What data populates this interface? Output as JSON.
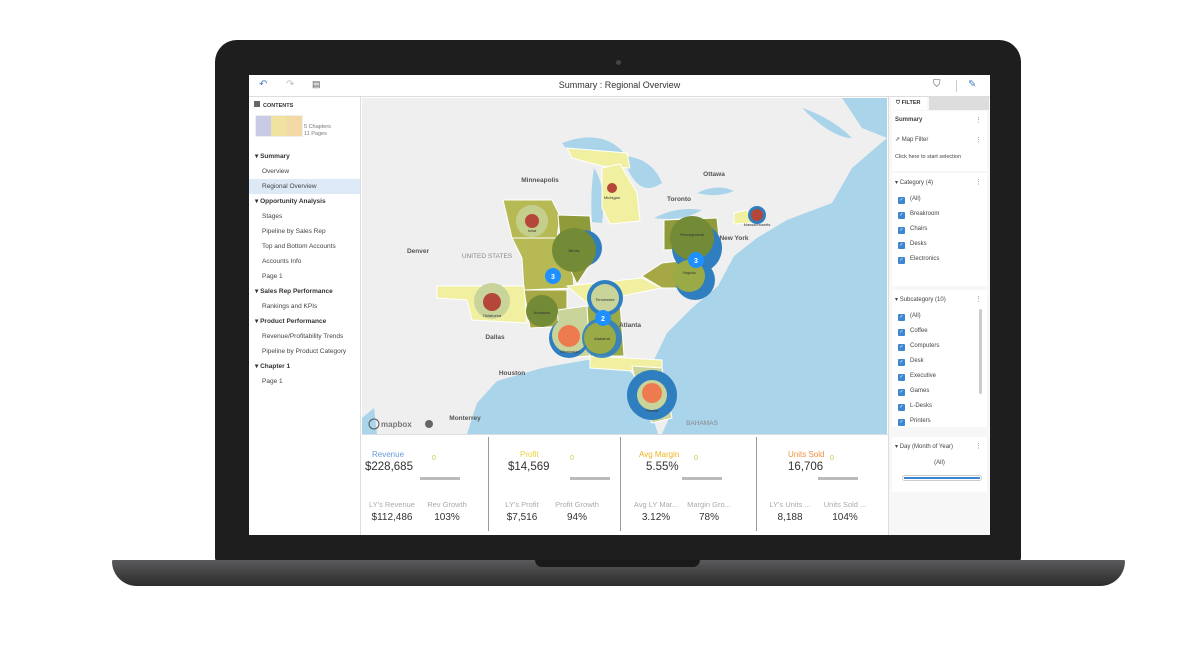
{
  "window": {
    "title": "Summary : Regional Overview"
  },
  "toolbar": {
    "undo": "undo-icon",
    "redo": "redo-icon",
    "contents": "contents-icon",
    "filter": "filter-icon",
    "edit": "pen-icon"
  },
  "sidebar": {
    "header": "CONTENTS",
    "chapters": "5 Chapters",
    "pages": "11 Pages",
    "sections": [
      {
        "label": "Summary",
        "items": [
          "Overview",
          "Regional Overview"
        ]
      },
      {
        "label": "Opportunity Analysis",
        "items": [
          "Stages",
          "Pipeline by Sales Rep",
          "Top and Bottom Accounts",
          "Accounts Info",
          "Page 1"
        ]
      },
      {
        "label": "Sales Rep Performance",
        "items": [
          "Rankings and KPIs"
        ]
      },
      {
        "label": "Product Performance",
        "items": [
          "Revenue/Profitability Trends",
          "Pipeline by Product Category"
        ]
      },
      {
        "label": "Chapter 1",
        "items": [
          "Page 1"
        ]
      }
    ],
    "selected": "Regional Overview"
  },
  "map": {
    "cities": [
      "Minneapolis",
      "Ottawa",
      "Toronto",
      "Denver",
      "UNITED STATES",
      "New York",
      "Dallas",
      "Atlanta",
      "Houston",
      "Monterrey",
      "BAHAMAS"
    ],
    "states": [
      "Iowa",
      "Illinois",
      "Michigan",
      "Massachusetts",
      "Pennsylvania",
      "Virginia",
      "Tennessee",
      "Oklahoma",
      "Arkansas",
      "Mississippi",
      "Alabama",
      "Florida"
    ],
    "clusters": [
      "3",
      "3",
      "2"
    ],
    "attribution": "mapbox",
    "colors": {
      "water": "#a9d4ea",
      "land": "#efefef",
      "bubble_blue": "#2f7fc0",
      "bubble_red": "#b5473a",
      "bubble_orange": "#ee7b4f",
      "cluster": "#1e90ff",
      "state_dark": "#8f9a3b",
      "state_mid": "#b7b955",
      "state_light": "#f1f0a0"
    }
  },
  "kpis": [
    {
      "label": "Revenue",
      "color": "#6a9bd8",
      "value": "$228,685",
      "sub": [
        {
          "label": "LY's Revenue",
          "value": "$112,486"
        },
        {
          "label": "Rev Growth",
          "value": "103%"
        }
      ]
    },
    {
      "label": "Profit",
      "color": "#e8d23a",
      "value": "$14,569",
      "sub": [
        {
          "label": "LY's Profit",
          "value": "$7,516"
        },
        {
          "label": "Profit Growth",
          "value": "94%"
        }
      ]
    },
    {
      "label": "Avg Margin",
      "color": "#f0b323",
      "value": "5.55%",
      "sub": [
        {
          "label": "Avg LY Mar...",
          "value": "3.12%"
        },
        {
          "label": "Margin Gro...",
          "value": "78%"
        }
      ]
    },
    {
      "label": "Units Sold",
      "color": "#f0923a",
      "value": "16,706",
      "sub": [
        {
          "label": "LY's Units ...",
          "value": "8,188"
        },
        {
          "label": "Units Sold ...",
          "value": "104%"
        }
      ]
    }
  ],
  "kpi_trend": "0",
  "filter": {
    "tab": "FILTER",
    "summary": "Summary",
    "map_filter": "Map Filter",
    "map_hint": "Click here to start selection",
    "category": {
      "title": "Category (4)",
      "items": [
        "(All)",
        "Breakroom",
        "Chairs",
        "Desks",
        "Electronics"
      ]
    },
    "subcategory": {
      "title": "Subcategory (10)",
      "items": [
        "(All)",
        "Coffee",
        "Computers",
        "Desk",
        "Executive",
        "Games",
        "L-Desks",
        "Printers"
      ]
    },
    "day": {
      "title": "Day (Month of Year)",
      "value": "(All)"
    }
  }
}
